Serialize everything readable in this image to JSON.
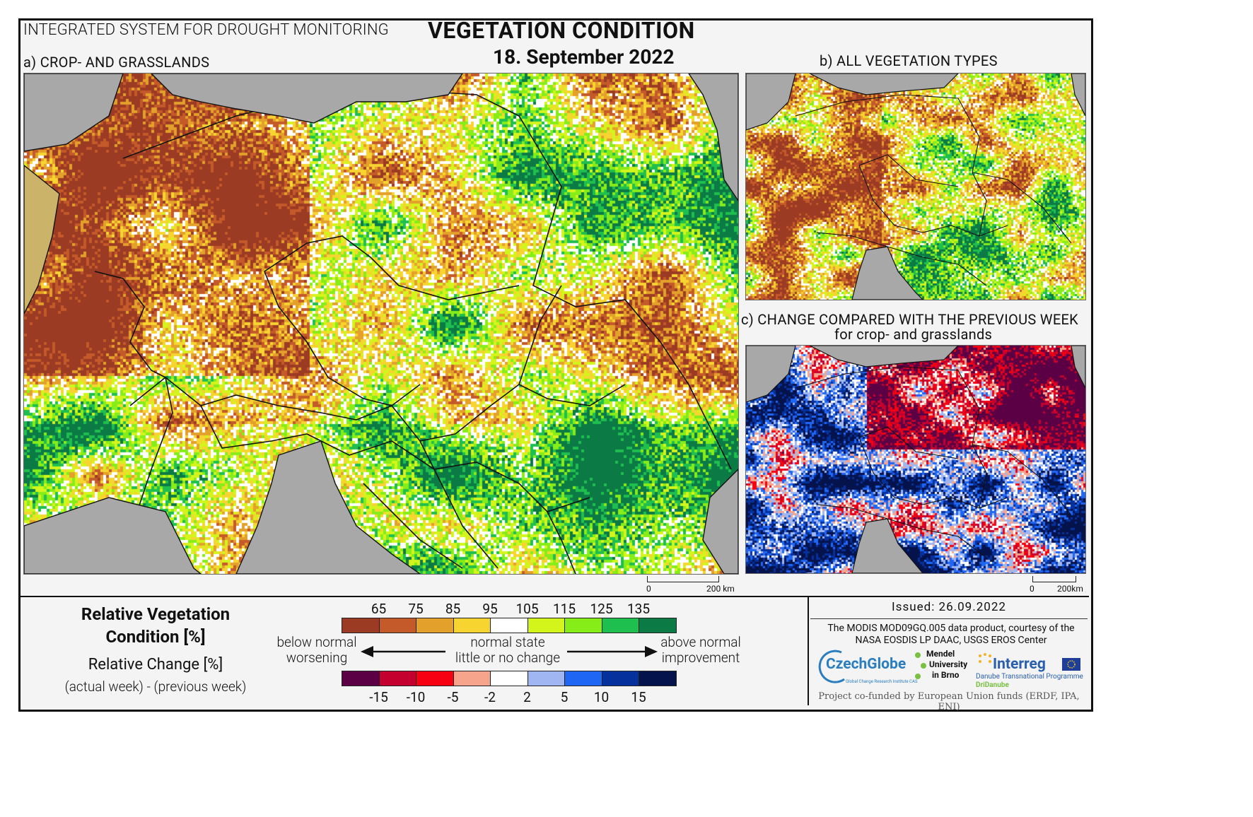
{
  "header": {
    "system_name": "INTEGRATED SYSTEM FOR DROUGHT MONITORING",
    "title": "VEGETATION CONDITION",
    "date": "18. September 2022"
  },
  "panels": {
    "a_label": "a) CROP- AND GRASSLANDS",
    "b_label": "b) ALL VEGETATION TYPES",
    "c_label": "c) CHANGE COMPARED WITH THE PREVIOUS WEEK",
    "c_sublabel": "for crop- and grasslands",
    "scale_a": {
      "zero": "0",
      "distance": "200 km"
    },
    "scale_c": {
      "zero": "0",
      "distance": "200km"
    }
  },
  "legend": {
    "title": "Relative Vegetation Condition [%]",
    "change_title": "Relative Change [%]",
    "change_formula": "(actual week) - (previous week)",
    "condition_ticks": [
      "65",
      "75",
      "85",
      "95",
      "105",
      "115",
      "125",
      "135"
    ],
    "condition_colors": [
      "#9b3b24",
      "#c4592a",
      "#e3a02a",
      "#f7d430",
      "#ffffff",
      "#d3f51c",
      "#86ed18",
      "#1fbf4f",
      "#0b7a45"
    ],
    "change_ticks": [
      "-15",
      "-10",
      "-5",
      "-2",
      "2",
      "5",
      "10",
      "15"
    ],
    "change_colors": [
      "#5b0045",
      "#c4002e",
      "#f60012",
      "#f7a48d",
      "#ffffff",
      "#9fb6f2",
      "#1f66f5",
      "#05319c",
      "#05134d"
    ],
    "left_top": "below normal",
    "left_bottom": "worsening",
    "center_top": "normal state",
    "center_bottom": "little or no change",
    "right_top": "above normal",
    "right_bottom": "improvement"
  },
  "footer": {
    "issued": "Issued: 26.09.2022",
    "modis_note": "The MODIS MOD09GQ.005 data product, courtesy of the NASA EOSDIS LP DAAC, USGS EROS Center",
    "logos": {
      "czechglobe": "CzechGlobe",
      "czechglobe_sub": "Global Change Research Institute CAS",
      "mendel_1": "Mendel",
      "mendel_2": "University",
      "mendel_3": "in Brno",
      "interreg": "Interreg",
      "interreg_sub": "Danube Transnational Programme",
      "dridanube": "DriDanube"
    },
    "cofunded": "Project co-funded by European Union funds (ERDF, IPA, ENI)"
  },
  "colors": {
    "sea_gray": "#a8a8a8",
    "frame_bg": "#f4f4f4"
  }
}
